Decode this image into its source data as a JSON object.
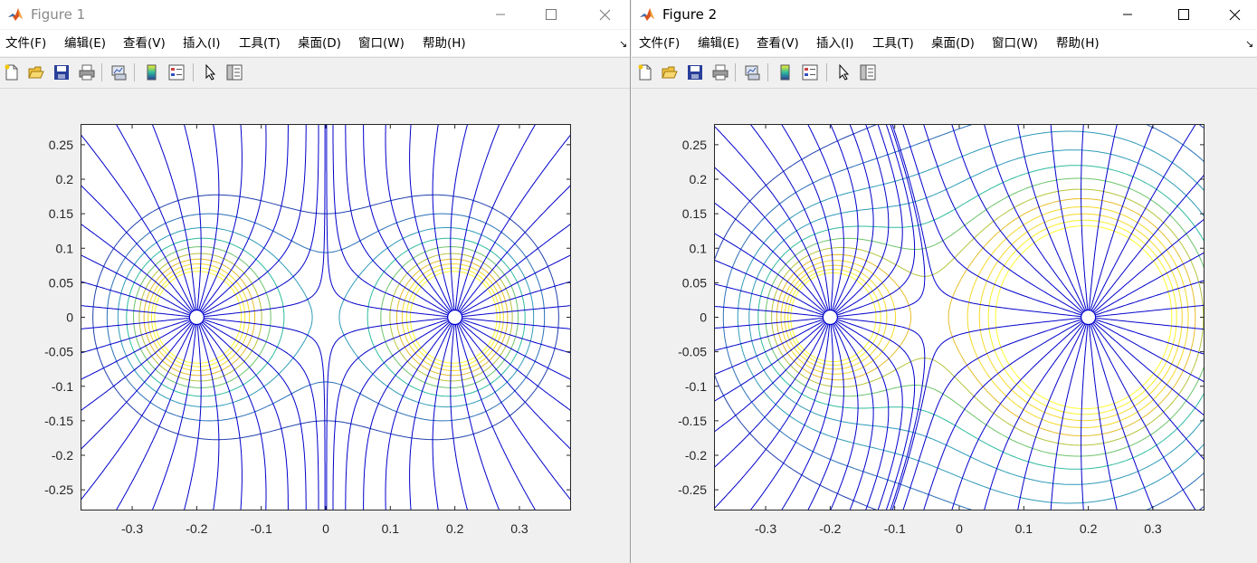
{
  "windows": [
    {
      "title": "Figure 1",
      "active": false,
      "menu": [
        "文件(F)",
        "编辑(E)",
        "查看(V)",
        "插入(I)",
        "工具(T)",
        "桌面(D)",
        "窗口(W)",
        "帮助(H)"
      ],
      "chart_data": {
        "type": "line",
        "description_of_content": "",
        "xlim": [
          -0.38,
          0.38
        ],
        "ylim": [
          -0.28,
          0.28
        ],
        "x_ticks": [
          "-0.3",
          "-0.2",
          "-0.1",
          "0",
          "0.1",
          "0.2",
          "0.3"
        ],
        "y_ticks": [
          "0.25",
          "0.2",
          "0.15",
          "0.1",
          "0.05",
          "0",
          "-0.05",
          "-0.1",
          "-0.15",
          "-0.2",
          "-0.25"
        ],
        "charges": [
          {
            "x": -0.2,
            "y": 0
          },
          {
            "x": 0.2,
            "y": 0
          }
        ],
        "equipotential_levels": 10,
        "field_lines_per_charge": 32,
        "field_line_color": "#0000cc",
        "contour_colormap": [
          "#1f3fae",
          "#2a6fb8",
          "#2f9ab8",
          "#2fbb9e",
          "#6cc46a",
          "#b6c43c",
          "#e6bd2a",
          "#f5d92a",
          "#f9f02a",
          "#fdff30"
        ]
      }
    },
    {
      "title": "Figure 2",
      "active": true,
      "menu": [
        "文件(F)",
        "编辑(E)",
        "查看(V)",
        "插入(I)",
        "工具(T)",
        "桌面(D)",
        "窗口(W)",
        "帮助(H)"
      ],
      "chart_data": {
        "type": "line",
        "description_of_content": "",
        "xlim": [
          -0.38,
          0.38
        ],
        "ylim": [
          -0.28,
          0.28
        ],
        "x_ticks": [
          "-0.3",
          "-0.2",
          "-0.1",
          "0",
          "0.1",
          "0.2",
          "0.3"
        ],
        "y_ticks": [
          "0.25",
          "0.2",
          "0.15",
          "0.1",
          "0.05",
          "0",
          "-0.05",
          "-0.1",
          "-0.15",
          "-0.2",
          "-0.25"
        ],
        "charges": [
          {
            "x": -0.2,
            "y": 0
          },
          {
            "x": 0.2,
            "y": 0
          }
        ],
        "equipotential_levels": 12,
        "field_lines_per_charge": 32,
        "field_line_color": "#0000cc",
        "contour_colormap": [
          "#1f3fae",
          "#2a6fb8",
          "#2f9ab8",
          "#2fbb9e",
          "#6cc46a",
          "#b6c43c",
          "#e6bd2a",
          "#f5d92a",
          "#f9f02a",
          "#fdff30"
        ]
      }
    }
  ]
}
